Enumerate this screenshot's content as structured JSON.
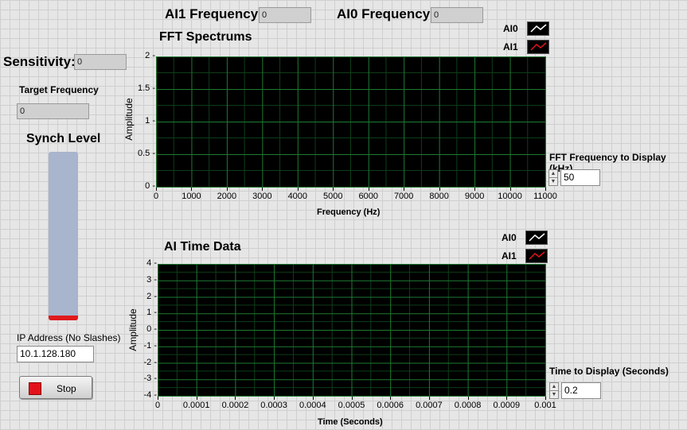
{
  "ai1_frequency": {
    "label": "AI1 Frequency:",
    "value": "0"
  },
  "ai0_frequency": {
    "label": "AI0 Frequency:",
    "value": "0"
  },
  "sensitivity": {
    "label": "Sensitivity:",
    "value": "0"
  },
  "target_frequency": {
    "label": "Target Frequency",
    "value": "0"
  },
  "synch_level": {
    "label": "Synch Level",
    "level": 0
  },
  "ip_address": {
    "label": "IP Address (No Slashes)",
    "value": "10.1.128.180"
  },
  "stop_button": {
    "label": "Stop"
  },
  "fft_frequency_control": {
    "label": "FFT Frequency to Display (kHz)",
    "value": "50"
  },
  "time_display_control": {
    "label": "Time to Display (Seconds)",
    "value": "0.2"
  },
  "colors": {
    "plot_bg": "#000000",
    "grid": "#1e7a32",
    "tank": "#a9b4cd",
    "tank_level": "#e0191c",
    "stop_led": "#e3121a"
  },
  "fft_graph": {
    "title": "FFT Spectrums",
    "ylabel": "Amplitude",
    "xlabel": "Frequency (Hz)",
    "legend": [
      {
        "name": "AI0",
        "icon": "plot-line-white-icon"
      },
      {
        "name": "AI1",
        "icon": "plot-line-red-icon"
      }
    ],
    "chart_data": {
      "type": "line",
      "xlim": [
        0,
        11000
      ],
      "ylim": [
        0,
        2
      ],
      "x_ticks": [
        "0",
        "1000",
        "2000",
        "3000",
        "4000",
        "5000",
        "6000",
        "7000",
        "8000",
        "9000",
        "10000",
        "11000"
      ],
      "y_ticks": [
        "2",
        "1.5",
        "1",
        "0.5",
        "0"
      ],
      "grid": true,
      "series": []
    }
  },
  "time_graph": {
    "title": "AI Time Data",
    "ylabel": "Amplitude",
    "xlabel": "Time (Seconds)",
    "legend": [
      {
        "name": "AI0",
        "icon": "plot-line-white-icon"
      },
      {
        "name": "AI1",
        "icon": "plot-line-red-icon"
      }
    ],
    "chart_data": {
      "type": "line",
      "xlim": [
        0,
        0.001
      ],
      "ylim": [
        -4,
        4
      ],
      "x_ticks": [
        "0",
        "0.0001",
        "0.0002",
        "0.0003",
        "0.0004",
        "0.0005",
        "0.0006",
        "0.0007",
        "0.0008",
        "0.0009",
        "0.001"
      ],
      "y_ticks": [
        "4",
        "3",
        "2",
        "1",
        "0",
        "-1",
        "-2",
        "-3",
        "-4"
      ],
      "grid": true,
      "series": []
    }
  }
}
